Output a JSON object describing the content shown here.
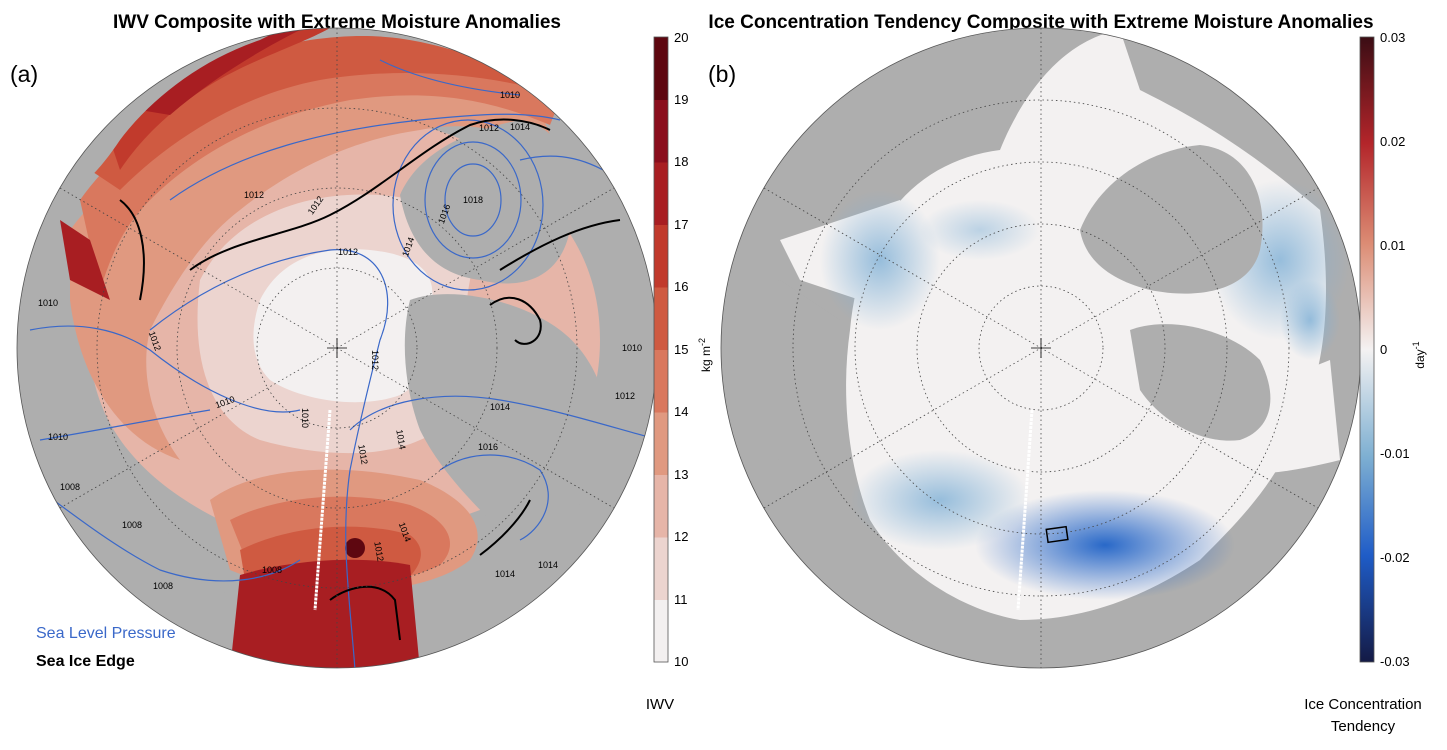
{
  "panel_a": {
    "title": "IWV Composite with Extreme Moisture Anomalies",
    "label": "(a)",
    "colorbar": {
      "ticks": [
        "10",
        "11",
        "12",
        "13",
        "14",
        "15",
        "16",
        "17",
        "18",
        "19",
        "20"
      ],
      "unit": "kg m",
      "unit_exp": "-2",
      "caption": "IWV",
      "colors": [
        "#f3f0f0",
        "#ecd4cf",
        "#e6b5a8",
        "#e09980",
        "#d9785e",
        "#cf5a41",
        "#c13a2c",
        "#a81e22",
        "#8a0e1d",
        "#5e0710"
      ]
    },
    "legend": {
      "slp": "Sea Level Pressure",
      "ice": "Sea Ice Edge"
    },
    "contour_labels": [
      "1010",
      "1012",
      "1014",
      "1016",
      "1018",
      "1008"
    ]
  },
  "panel_b": {
    "title": "Ice Concentration Tendency Composite with Extreme Moisture Anomalies",
    "label": "(b)",
    "colorbar": {
      "ticks": [
        "0.03",
        "0.02",
        "0.01",
        "0",
        "-0.01",
        "-0.02",
        "-0.03"
      ],
      "unit": "day",
      "unit_exp": "-1",
      "caption_line1": "Ice Concentration",
      "caption_line2": "Tendency"
    }
  },
  "colors": {
    "land": "#aeaeae",
    "slp_contour": "#3a68c9",
    "ice_edge": "#000000"
  }
}
